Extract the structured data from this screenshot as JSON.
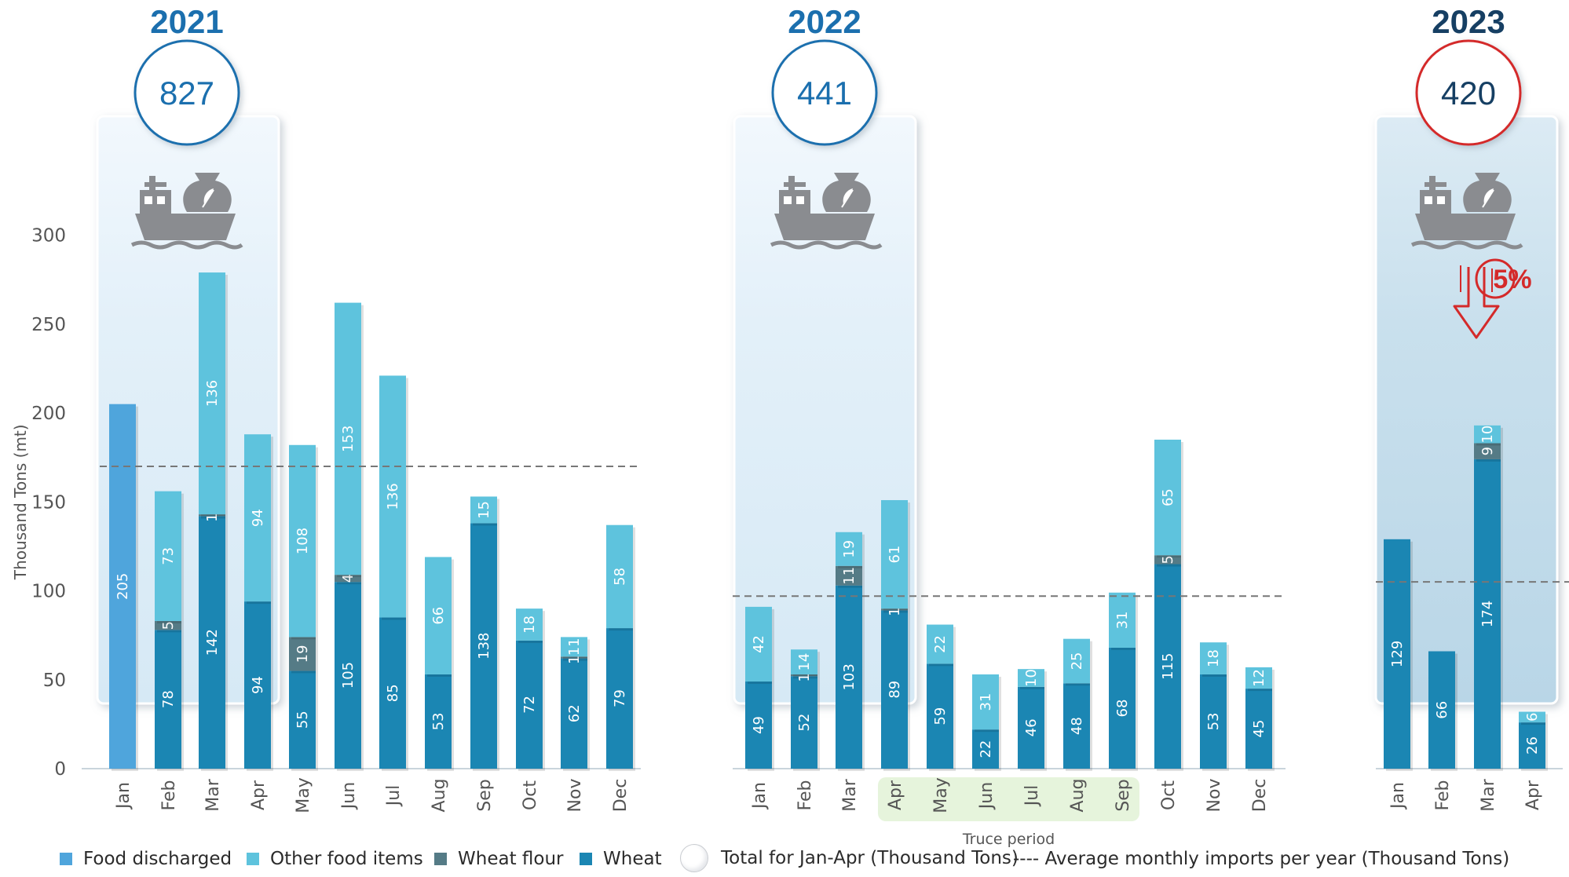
{
  "chart_data": {
    "type": "bar",
    "stacked": true,
    "ylabel": "Thousand Tons (mt)",
    "ylim": [
      0,
      300
    ],
    "yticks": [
      0,
      50,
      100,
      150,
      200,
      250,
      300
    ],
    "grid": false,
    "legend_position": "bottom",
    "series_order": [
      "wheat",
      "wheat_flour",
      "other_food",
      "food_discharged"
    ],
    "series_colors": {
      "wheat": "#1b86b3",
      "wheat_flour": "#557b86",
      "other_food": "#5ec3dd",
      "food_discharged": "#4fa5dc"
    },
    "years": [
      {
        "year": "2021",
        "total_jan_apr": "827",
        "average_monthly": 170,
        "months": [
          {
            "m": "Jan",
            "food_discharged": 205
          },
          {
            "m": "Feb",
            "wheat": 78,
            "wheat_flour": 5,
            "other_food": 73
          },
          {
            "m": "Mar",
            "wheat": 142,
            "wheat_flour": 1,
            "other_food": 136
          },
          {
            "m": "Apr",
            "wheat": 94,
            "other_food": 94
          },
          {
            "m": "May",
            "wheat": 55,
            "wheat_flour": 19,
            "other_food": 108
          },
          {
            "m": "Jun",
            "wheat": 105,
            "wheat_flour": 4,
            "other_food": 153
          },
          {
            "m": "Jul",
            "wheat": 85,
            "other_food": 136
          },
          {
            "m": "Aug",
            "wheat": 53,
            "other_food": 66
          },
          {
            "m": "Sep",
            "wheat": 138,
            "other_food": 15
          },
          {
            "m": "Oct",
            "wheat": 72,
            "other_food": 18
          },
          {
            "m": "Nov",
            "wheat": 62,
            "wheat_flour": 1,
            "other_food": 11
          },
          {
            "m": "Dec",
            "wheat": 79,
            "other_food": 58
          }
        ]
      },
      {
        "year": "2022",
        "total_jan_apr": "441",
        "average_monthly": 97,
        "months": [
          {
            "m": "Jan",
            "wheat": 49,
            "other_food": 42
          },
          {
            "m": "Feb",
            "wheat": 52,
            "wheat_flour": 1,
            "other_food": 14
          },
          {
            "m": "Mar",
            "wheat": 103,
            "wheat_flour": 11,
            "other_food": 19
          },
          {
            "m": "Apr",
            "wheat": 89,
            "wheat_flour": 1,
            "other_food": 61
          },
          {
            "m": "May",
            "wheat": 59,
            "other_food": 22
          },
          {
            "m": "Jun",
            "wheat": 22,
            "other_food": 31
          },
          {
            "m": "Jul",
            "wheat": 46,
            "other_food": 10
          },
          {
            "m": "Aug",
            "wheat": 48,
            "other_food": 25
          },
          {
            "m": "Sep",
            "wheat": 68,
            "other_food": 31
          },
          {
            "m": "Oct",
            "wheat": 115,
            "wheat_flour": 5,
            "other_food": 65
          },
          {
            "m": "Nov",
            "wheat": 53,
            "other_food": 18
          },
          {
            "m": "Dec",
            "wheat": 45,
            "other_food": 12
          }
        ]
      },
      {
        "year": "2023",
        "total_jan_apr": "420",
        "average_monthly": 105,
        "change_label": "5%",
        "months": [
          {
            "m": "Jan",
            "wheat": 129
          },
          {
            "m": "Feb",
            "wheat": 66
          },
          {
            "m": "Mar",
            "wheat": 174,
            "wheat_flour": 9,
            "other_food": 10
          },
          {
            "m": "Apr",
            "wheat": 26,
            "other_food": 6
          }
        ]
      }
    ],
    "truce_period_label": "Truce period"
  },
  "legend": {
    "food_discharged": "Food discharged",
    "other_food": "Other food items",
    "wheat_flour": "Wheat flour",
    "wheat": "Wheat",
    "total": "Total for Jan-Apr (Thousand Tons)",
    "average": "---- Average monthly imports per year (Thousand Tons)"
  },
  "colors": {
    "year_2021": "#1b6fae",
    "year_2022": "#1b6fae",
    "year_2023": "#163f63",
    "decline": "#d42a2a",
    "icon": "#8a8c90",
    "panel_light": "#e6f2fa",
    "panel_2023": "#c9e1ee",
    "truce": "#e6f4dc"
  },
  "icons": {
    "ship_sack": "cargo-ship-with-grain-sack-icon",
    "decline": "down-arrow-decline-icon"
  }
}
